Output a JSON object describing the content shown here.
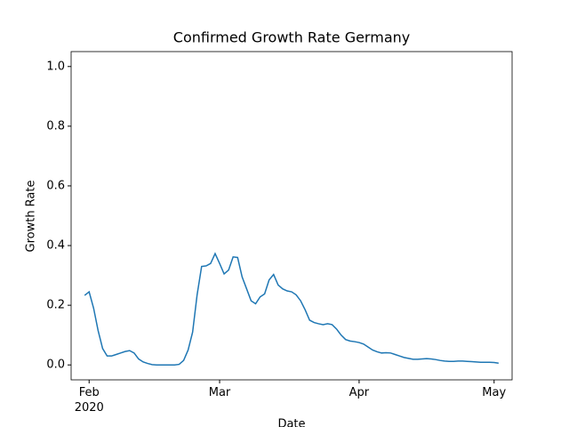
{
  "chart_data": {
    "type": "line",
    "title": "Confirmed Growth Rate Germany",
    "xlabel": "Date",
    "ylabel": "Growth Rate",
    "x": [
      "2020-01-31",
      "2020-02-01",
      "2020-02-02",
      "2020-02-03",
      "2020-02-04",
      "2020-02-05",
      "2020-02-06",
      "2020-02-07",
      "2020-02-08",
      "2020-02-09",
      "2020-02-10",
      "2020-02-11",
      "2020-02-12",
      "2020-02-13",
      "2020-02-14",
      "2020-02-15",
      "2020-02-16",
      "2020-02-17",
      "2020-02-18",
      "2020-02-19",
      "2020-02-20",
      "2020-02-21",
      "2020-02-22",
      "2020-02-23",
      "2020-02-24",
      "2020-02-25",
      "2020-02-26",
      "2020-02-27",
      "2020-02-28",
      "2020-02-29",
      "2020-03-01",
      "2020-03-02",
      "2020-03-03",
      "2020-03-04",
      "2020-03-05",
      "2020-03-06",
      "2020-03-07",
      "2020-03-08",
      "2020-03-09",
      "2020-03-10",
      "2020-03-11",
      "2020-03-12",
      "2020-03-13",
      "2020-03-14",
      "2020-03-15",
      "2020-03-16",
      "2020-03-17",
      "2020-03-18",
      "2020-03-19",
      "2020-03-20",
      "2020-03-21",
      "2020-03-22",
      "2020-03-23",
      "2020-03-24",
      "2020-03-25",
      "2020-03-26",
      "2020-03-27",
      "2020-03-28",
      "2020-03-29",
      "2020-03-30",
      "2020-03-31",
      "2020-04-01",
      "2020-04-02",
      "2020-04-03",
      "2020-04-04",
      "2020-04-05",
      "2020-04-06",
      "2020-04-07",
      "2020-04-08",
      "2020-04-09",
      "2020-04-10",
      "2020-04-11",
      "2020-04-12",
      "2020-04-13",
      "2020-04-14",
      "2020-04-15",
      "2020-04-16",
      "2020-04-17",
      "2020-04-18",
      "2020-04-19",
      "2020-04-20",
      "2020-04-21",
      "2020-04-22",
      "2020-04-23",
      "2020-04-24",
      "2020-04-25",
      "2020-04-26",
      "2020-04-27",
      "2020-04-28",
      "2020-04-29",
      "2020-04-30",
      "2020-05-01",
      "2020-05-02"
    ],
    "series": [
      {
        "color": "#1f77b4",
        "values": [
          0.233,
          0.245,
          0.19,
          0.115,
          0.055,
          0.03,
          0.03,
          0.035,
          0.04,
          0.045,
          0.048,
          0.04,
          0.02,
          0.01,
          0.005,
          0.001,
          0,
          0,
          0,
          0,
          0,
          0.002,
          0.015,
          0.05,
          0.11,
          0.235,
          0.33,
          0.332,
          0.34,
          0.373,
          0.34,
          0.305,
          0.318,
          0.362,
          0.36,
          0.295,
          0.255,
          0.215,
          0.205,
          0.228,
          0.238,
          0.285,
          0.303,
          0.268,
          0.255,
          0.248,
          0.245,
          0.235,
          0.215,
          0.185,
          0.15,
          0.142,
          0.138,
          0.135,
          0.138,
          0.135,
          0.12,
          0.1,
          0.085,
          0.08,
          0.078,
          0.075,
          0.07,
          0.06,
          0.05,
          0.044,
          0.04,
          0.041,
          0.04,
          0.035,
          0.03,
          0.025,
          0.022,
          0.019,
          0.019,
          0.02,
          0.021,
          0.02,
          0.018,
          0.015,
          0.013,
          0.012,
          0.012,
          0.013,
          0.013,
          0.012,
          0.011,
          0.01,
          0.009,
          0.009,
          0.009,
          0.008,
          0.006
        ]
      }
    ],
    "xlim": [
      "2020-01-28",
      "2020-05-05"
    ],
    "xticks": [
      {
        "value": "2020-02-01",
        "label": "Feb\n2020"
      },
      {
        "value": "2020-03-01",
        "label": "Mar"
      },
      {
        "value": "2020-04-01",
        "label": "Apr"
      },
      {
        "value": "2020-05-01",
        "label": "May"
      }
    ],
    "ylim": [
      -0.05,
      1.05
    ],
    "yticks": [
      {
        "value": 0,
        "label": "0.0"
      },
      {
        "value": 0.2,
        "label": "0.2"
      },
      {
        "value": 0.4,
        "label": "0.4"
      },
      {
        "value": 0.6,
        "label": "0.6"
      },
      {
        "value": 0.8,
        "label": "0.8"
      },
      {
        "value": 1,
        "label": "1.0"
      }
    ]
  }
}
